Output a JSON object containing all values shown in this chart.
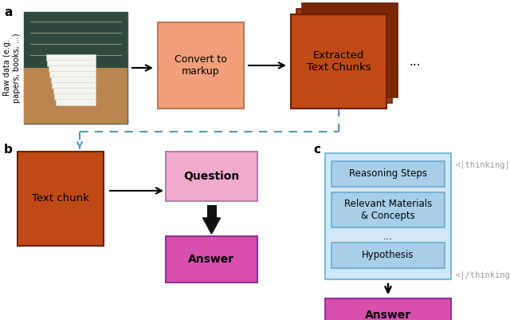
{
  "bg_color": "#ffffff",
  "label_a": "a",
  "label_b": "b",
  "label_c": "c",
  "raw_data_label": "Raw data (e.g.\npapers, books, ...)",
  "convert_markup_label": "Convert to\nmarkup",
  "extracted_chunks_label": "Extracted\nText Chunks",
  "ellipsis_top": "...",
  "text_chunk_label": "Text chunk",
  "question_label": "Question",
  "answer_b_label": "Answer",
  "answer_c_label": "Answer",
  "reasoning_steps_label": "Reasoning Steps",
  "relevant_materials_label": "Relevant Materials\n& Concepts",
  "ellipsis_c": "...",
  "hypothesis_label": "Hypothesis",
  "thinking_open": "<|thinking|>",
  "thinking_close": "<|/thinking|>",
  "color_orange_light": "#F2A07B",
  "color_brown_dark": "#C04A15",
  "color_brown_mid": "#A03A10",
  "color_brown_darker": "#7A2808",
  "color_pink_light": "#F2AACC",
  "color_magenta": "#D94FAD",
  "color_blue_light": "#A8CFEA",
  "color_blue_lighter": "#D0E8F5",
  "color_border_orange": "#C07850",
  "color_border_brown": "#6A2008",
  "color_border_blue": "#6AAAD0",
  "color_border_blue_outer": "#7ABADA",
  "color_border_pink": "#B080B0",
  "color_border_magenta": "#9030A0",
  "color_dash": "#5599BB",
  "color_arrow": "#111111"
}
